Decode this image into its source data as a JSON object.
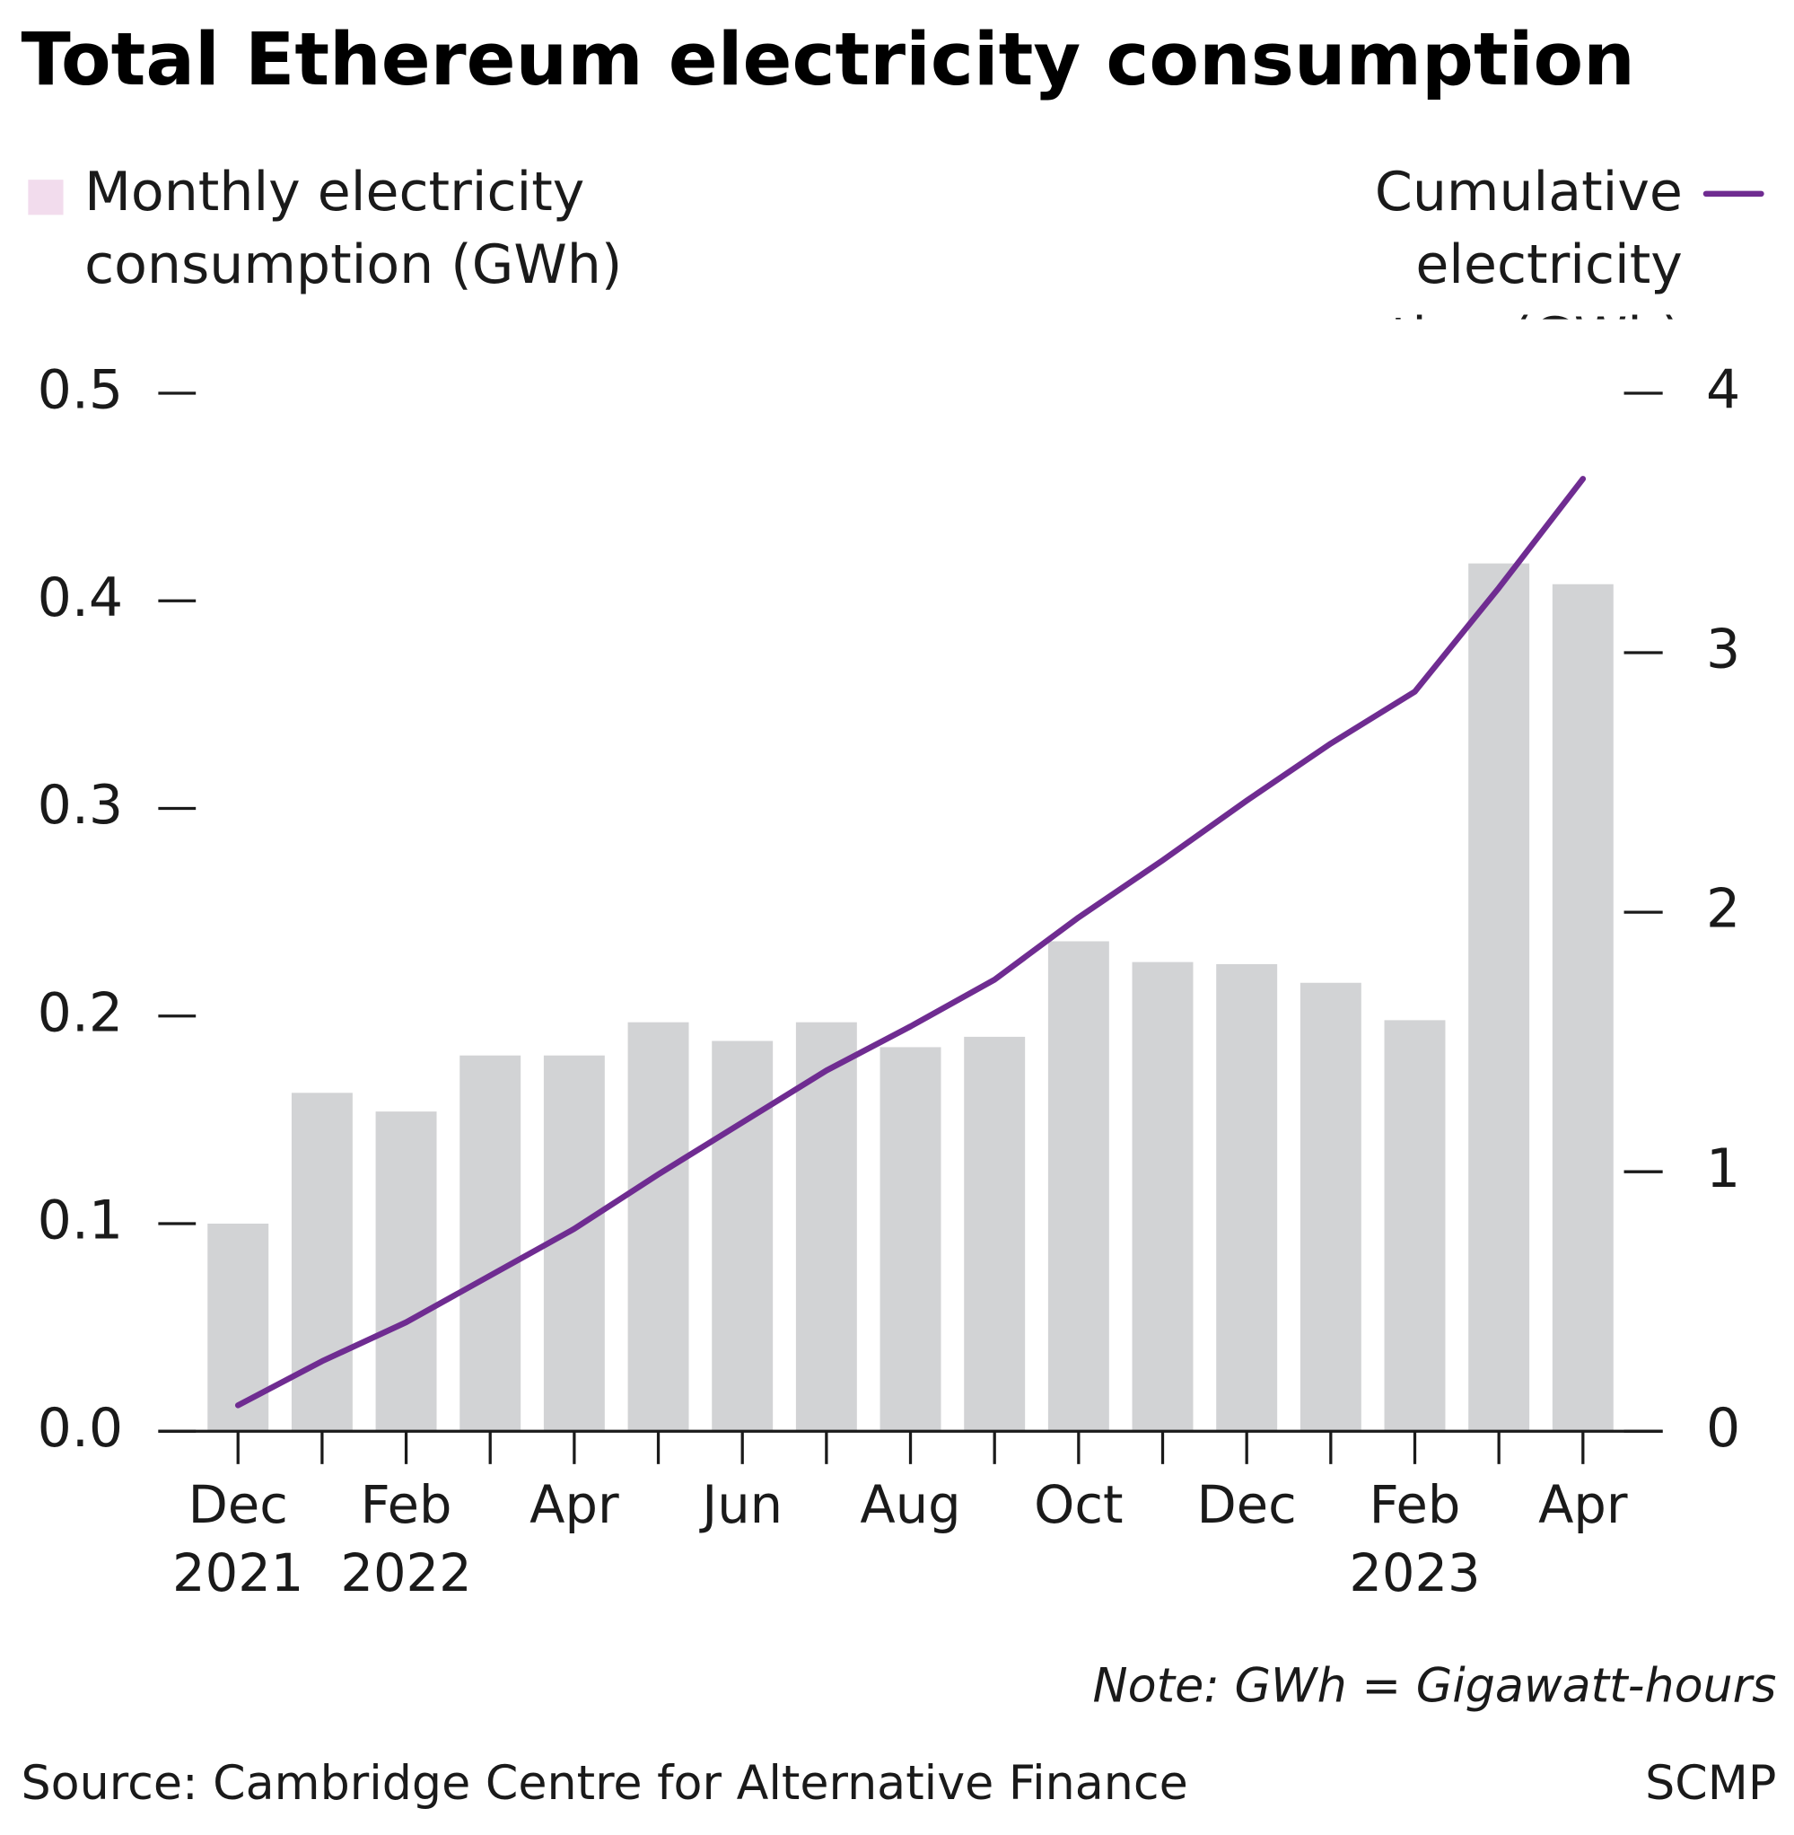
{
  "chart_data": {
    "type": "bar_line",
    "title": "Total Ethereum electricity consumption",
    "note": "Note: GWh = Gigawatt-hours",
    "source": "Source: Cambridge Centre for Alternative Finance",
    "credit": "SCMP",
    "categories": [
      "Dec 2021",
      null,
      "Feb 2022",
      null,
      "Apr",
      null,
      "Jun",
      null,
      "Aug",
      null,
      "Oct",
      null,
      "Dec",
      null,
      "Feb 2023",
      null,
      "Apr"
    ],
    "ylim": [
      0,
      0.5
    ],
    "yticks": [
      {
        "value": 0,
        "label": "0.0"
      },
      0.1,
      0.2,
      0.3,
      0.4,
      0.5
    ],
    "y2lim": [
      0,
      4
    ],
    "y2ticks": [
      0,
      1,
      2,
      3,
      4
    ],
    "legend_swatch_color": "#f2dced",
    "series": [
      {
        "name": "Monthly electricity consumption (GWh)",
        "type": "bar",
        "axis": "y",
        "color": "#d2d3d5",
        "values": [
          0.1,
          0.163,
          0.154,
          0.181,
          0.181,
          0.197,
          0.188,
          0.197,
          0.185,
          0.19,
          0.236,
          0.226,
          0.225,
          0.216,
          0.198,
          0.418,
          0.408
        ]
      },
      {
        "name": "Cumulative electricity consumption (GWh)",
        "type": "line",
        "axis": "y2",
        "color": "#6f2c91",
        "values": [
          0.1,
          0.27,
          0.42,
          0.6,
          0.78,
          0.99,
          1.19,
          1.39,
          1.56,
          1.74,
          1.98,
          2.2,
          2.43,
          2.65,
          2.85,
          3.25,
          3.67
        ]
      }
    ]
  }
}
